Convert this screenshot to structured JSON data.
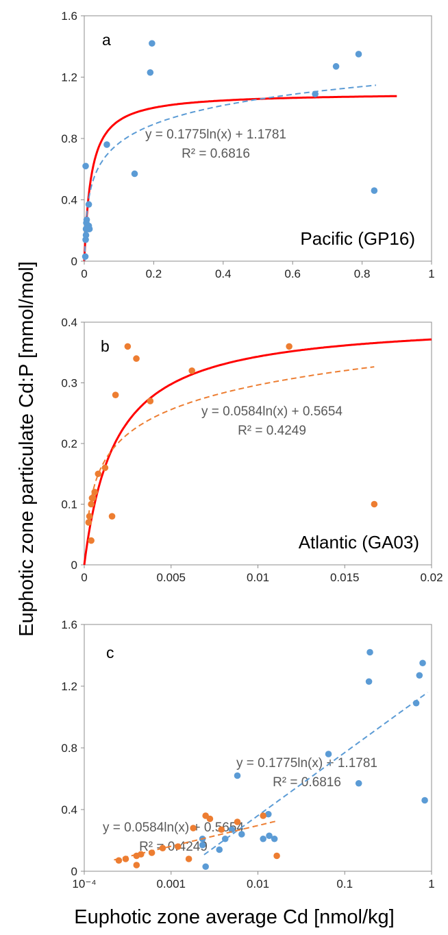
{
  "figure": {
    "ylabel": "Euphotic zone particulate Cd:P [mmol/mol]",
    "xlabel": "Euphotic zone average Cd [nmol/kg]"
  },
  "chart_data": [
    {
      "panel": "a",
      "type": "scatter",
      "region_label": "Pacific (GP16)",
      "xlim": [
        0,
        1
      ],
      "ylim": [
        0,
        1.6
      ],
      "xticks": [
        "0",
        "0.2",
        "0.4",
        "0.6",
        "0.8",
        "1"
      ],
      "yticks": [
        "0",
        "0.4",
        "0.8",
        "1.2",
        "1.6"
      ],
      "points": {
        "color": "#5b9bd5",
        "x": [
          0.003,
          0.004,
          0.005,
          0.005,
          0.006,
          0.007,
          0.008,
          0.01,
          0.012,
          0.013,
          0.015,
          0.004,
          0.013,
          0.065,
          0.145,
          0.19,
          0.195,
          0.665,
          0.725,
          0.79,
          0.835
        ],
        "y": [
          0.03,
          0.14,
          0.17,
          0.21,
          0.25,
          0.27,
          0.22,
          0.23,
          0.21,
          0.23,
          0.21,
          0.62,
          0.37,
          0.76,
          0.57,
          1.23,
          1.42,
          1.09,
          1.27,
          1.35,
          0.46
        ]
      },
      "fit_log": {
        "a": 0.1775,
        "b": 1.1781,
        "x_range": [
          0.001,
          0.84
        ],
        "color": "#5b9bd5",
        "equation": "y = 0.1775ln(x) + 1.1781",
        "r2": "R² = 0.6816"
      },
      "model_curve": {
        "ymax": 1.1,
        "k": 0.02,
        "x_range": [
          0,
          0.9
        ],
        "color": "#ff0000"
      }
    },
    {
      "panel": "b",
      "type": "scatter",
      "region_label": "Atlantic (GA03)",
      "xlim": [
        0,
        0.02
      ],
      "ylim": [
        0,
        0.4
      ],
      "xticks": [
        "0",
        "0.005",
        "0.01",
        "0.015",
        "0.02"
      ],
      "yticks": [
        "0",
        "0.1",
        "0.2",
        "0.3",
        "0.4"
      ],
      "points": {
        "color": "#ed7d31",
        "x": [
          0.00025,
          0.0003,
          0.0004,
          0.00045,
          0.0005,
          0.0006,
          0.0008,
          0.0012,
          0.0004,
          0.0016,
          0.0018,
          0.0025,
          0.003,
          0.0038,
          0.0062,
          0.0118,
          0.0167
        ],
        "y": [
          0.07,
          0.08,
          0.1,
          0.11,
          0.11,
          0.12,
          0.15,
          0.16,
          0.04,
          0.08,
          0.28,
          0.36,
          0.34,
          0.27,
          0.32,
          0.36,
          0.1
        ]
      },
      "fit_log": {
        "a": 0.0584,
        "b": 0.5654,
        "x_range": [
          0.00025,
          0.0167
        ],
        "color": "#ed7d31",
        "equation": "y = 0.0584ln(x) + 0.5654",
        "r2": "R² = 0.4249"
      },
      "model_curve": {
        "ymax": 0.405,
        "k": 0.0018,
        "x_range": [
          0,
          0.02
        ],
        "color": "#ff0000"
      }
    },
    {
      "panel": "c",
      "type": "scatter",
      "xscale": "log",
      "xlim": [
        0.0001,
        1
      ],
      "ylim": [
        0,
        1.6
      ],
      "xticks": [
        "10⁻⁴",
        "0.001",
        "0.01",
        "0.1",
        "1"
      ],
      "yticks": [
        "0",
        "0.4",
        "0.8",
        "1.2",
        "1.6"
      ],
      "series": [
        {
          "name": "Pacific (GP16)",
          "color": "#5b9bd5",
          "x": [
            0.0025,
            0.0023,
            0.0023,
            0.0036,
            0.0042,
            0.005,
            0.0058,
            0.0065,
            0.0115,
            0.0135,
            0.0155,
            0.0132,
            0.065,
            0.145,
            0.19,
            0.195,
            0.665,
            0.725,
            0.79,
            0.835
          ],
          "y": [
            0.03,
            0.17,
            0.21,
            0.14,
            0.21,
            0.27,
            0.62,
            0.24,
            0.21,
            0.23,
            0.21,
            0.37,
            0.76,
            0.57,
            1.23,
            1.42,
            1.09,
            1.27,
            1.35,
            0.46
          ],
          "fit": {
            "a": 0.1775,
            "b": 1.1781,
            "x_range": [
              0.0024,
              0.9
            ],
            "equation": "y = 0.1775ln(x) + 1.1781",
            "r2": "R² = 0.6816"
          }
        },
        {
          "name": "Atlantic (GA03)",
          "color": "#ed7d31",
          "x": [
            0.00025,
            0.0003,
            0.0004,
            0.00045,
            0.0006,
            0.0008,
            0.0012,
            0.0004,
            0.0016,
            0.0018,
            0.0025,
            0.0028,
            0.0038,
            0.0058,
            0.0115,
            0.0165
          ],
          "y": [
            0.07,
            0.08,
            0.1,
            0.11,
            0.12,
            0.15,
            0.16,
            0.04,
            0.08,
            0.28,
            0.36,
            0.34,
            0.27,
            0.32,
            0.36,
            0.1
          ],
          "fit": {
            "a": 0.0584,
            "b": 0.5654,
            "x_range": [
              0.00022,
              0.017
            ],
            "equation": "y = 0.0584ln(x) + 0.5654",
            "r2": "R² = 0.4249"
          }
        }
      ]
    }
  ]
}
